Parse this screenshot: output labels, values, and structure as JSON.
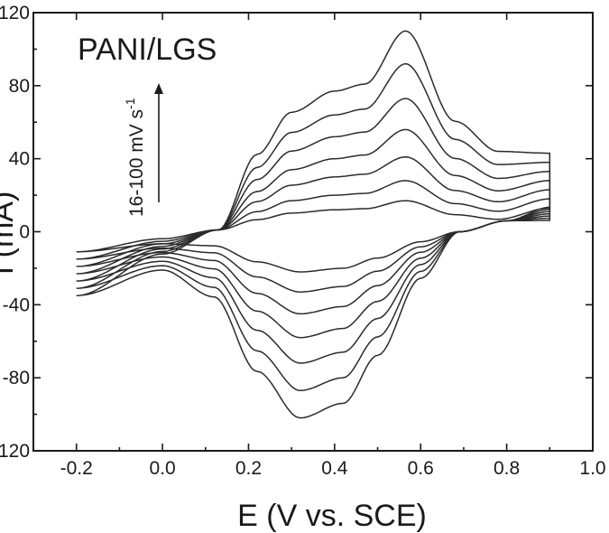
{
  "chart_data": {
    "type": "line",
    "title": "PANI/LGS",
    "xlabel": "E (V vs. SCE)",
    "ylabel": "I (mA)",
    "xlim": [
      -0.3,
      1.0
    ],
    "ylim": [
      -120,
      120
    ],
    "x_ticks": [
      -0.2,
      0.0,
      0.2,
      0.4,
      0.6,
      0.8,
      1.0
    ],
    "x_tick_labels": [
      "-0.2",
      "0.0",
      "0.2",
      "0.4",
      "0.6",
      "0.8",
      "1.0"
    ],
    "y_ticks": [
      -120,
      -80,
      -40,
      0,
      40,
      80,
      120
    ],
    "y_tick_labels": [
      "-120",
      "-80",
      "-40",
      "0",
      "40",
      "80",
      "120"
    ],
    "grid": false,
    "annotation": {
      "text_main": "16-100 mV s",
      "text_sup": "-1",
      "arrow": "up"
    },
    "series": [
      {
        "scan_rate_index": 1,
        "anodic_peak": 17,
        "anodic_shoulder": 12,
        "cathodic_peak": -22,
        "cathodic_shoulder": -20,
        "start_current": -11
      },
      {
        "scan_rate_index": 2,
        "anodic_peak": 28,
        "anodic_shoulder": 20,
        "cathodic_peak": -33,
        "cathodic_shoulder": -30,
        "start_current": -15
      },
      {
        "scan_rate_index": 3,
        "anodic_peak": 41,
        "anodic_shoulder": 30,
        "cathodic_peak": -45,
        "cathodic_shoulder": -41,
        "start_current": -19
      },
      {
        "scan_rate_index": 4,
        "anodic_peak": 56,
        "anodic_shoulder": 40,
        "cathodic_peak": -58,
        "cathodic_shoulder": -53,
        "start_current": -23
      },
      {
        "scan_rate_index": 5,
        "anodic_peak": 73,
        "anodic_shoulder": 52,
        "cathodic_peak": -72,
        "cathodic_shoulder": -66,
        "start_current": -27
      },
      {
        "scan_rate_index": 6,
        "anodic_peak": 92,
        "anodic_shoulder": 64,
        "cathodic_peak": -87,
        "cathodic_shoulder": -80,
        "start_current": -31
      },
      {
        "scan_rate_index": 7,
        "anodic_peak": 110,
        "anodic_shoulder": 77,
        "cathodic_peak": -102,
        "cathodic_shoulder": -94,
        "start_current": -35
      }
    ],
    "potential_window": [
      -0.2,
      0.9
    ],
    "anodic_peak_potential": 0.565,
    "cathodic_peak_potential": 0.32
  }
}
